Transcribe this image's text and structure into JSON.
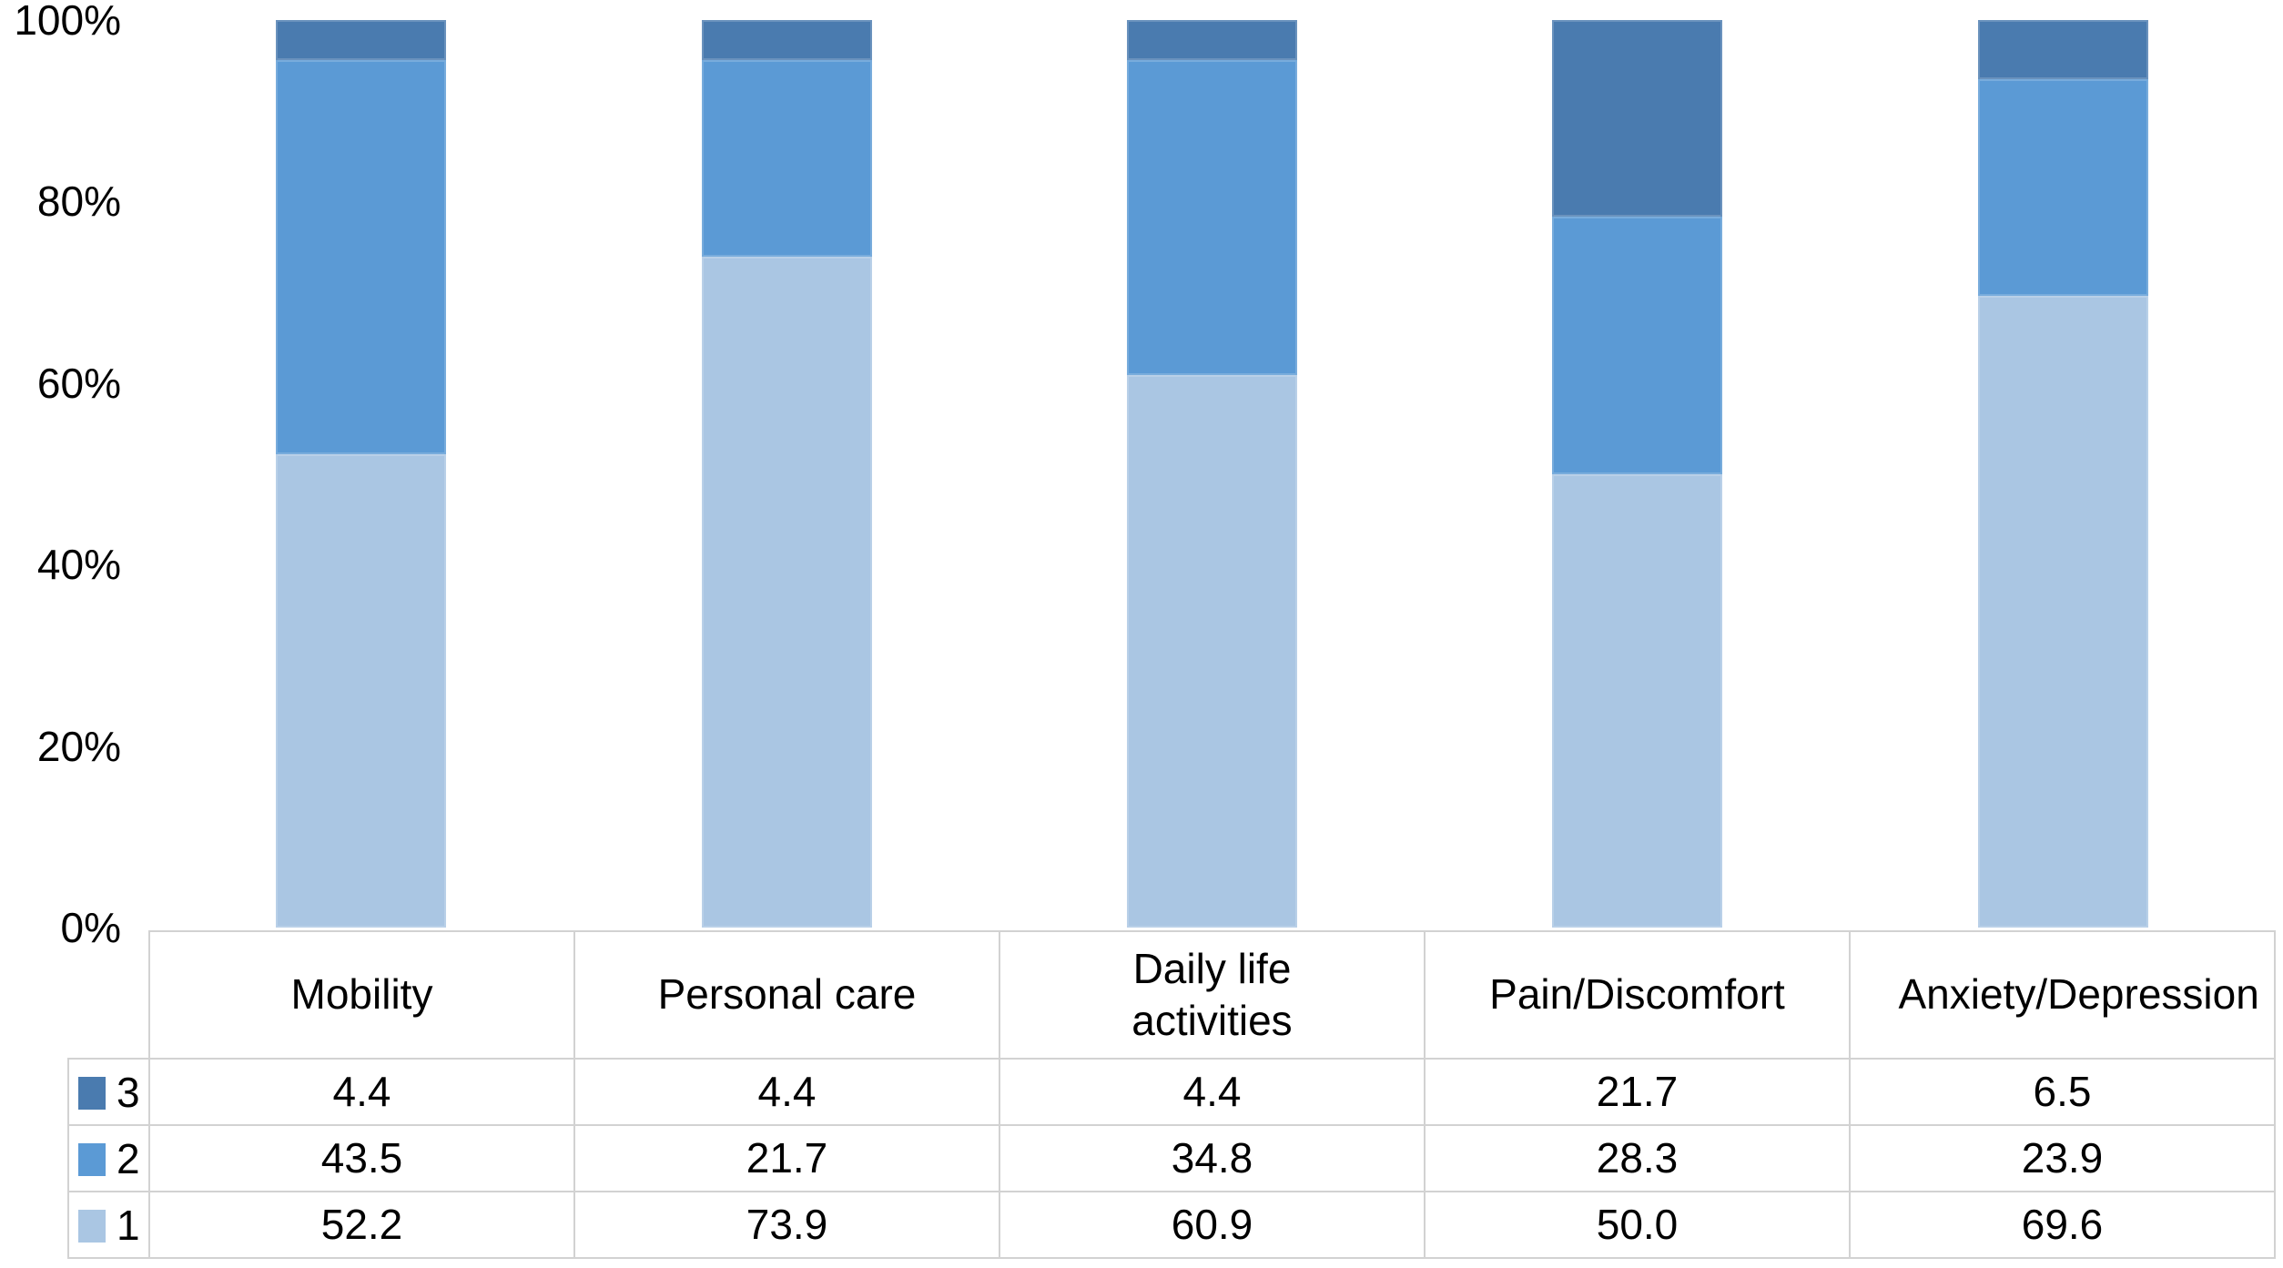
{
  "chart_data": {
    "type": "bar",
    "stacked": true,
    "percent_stacked": true,
    "title": "",
    "xlabel": "",
    "ylabel": "",
    "ylim": [
      0,
      100
    ],
    "yticks": [
      "0%",
      "20%",
      "40%",
      "60%",
      "80%",
      "100%"
    ],
    "grid": false,
    "legend_position": "table-left",
    "categories": [
      "Mobility",
      "Personal care",
      "Daily life activities",
      "Pain/Discomfort",
      "Anxiety/Depression"
    ],
    "series": [
      {
        "name": "1",
        "color": "#AAC6E3",
        "values": [
          52.2,
          73.9,
          60.9,
          50.0,
          69.6
        ]
      },
      {
        "name": "2",
        "color": "#5B9AD5",
        "values": [
          43.5,
          21.7,
          34.8,
          28.3,
          23.9
        ]
      },
      {
        "name": "3",
        "color": "#4A7BAF",
        "values": [
          4.4,
          4.4,
          4.4,
          21.7,
          6.5
        ]
      }
    ],
    "table_row_order": [
      "3",
      "2",
      "1"
    ],
    "value_decimals": 1
  },
  "colors": {
    "table_border": "#d2d2d2",
    "text": "#000000",
    "background": "#ffffff"
  }
}
